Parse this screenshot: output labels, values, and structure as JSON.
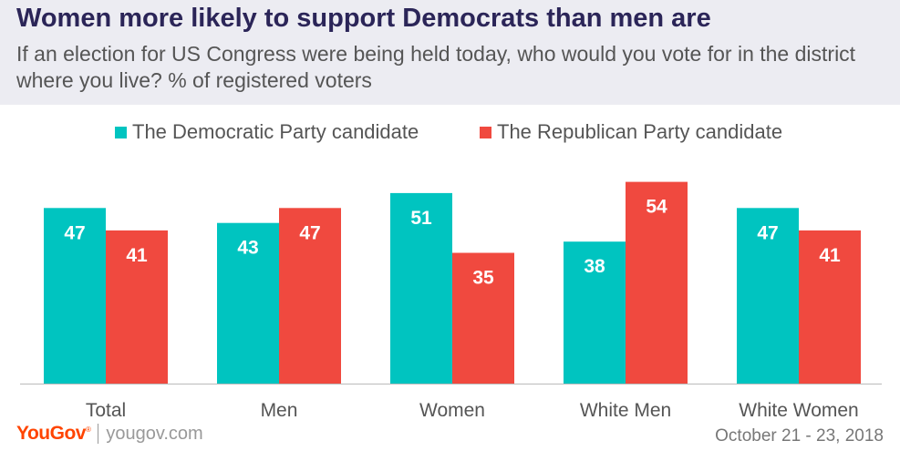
{
  "header": {
    "title": "Women more likely to support Democrats than men are",
    "subtitle": "If an election for US Congress were being held today, who would you vote for in the district where you live? % of registered voters"
  },
  "colors": {
    "dem": "#00c4c0",
    "rep": "#f0493f",
    "axis": "#bbbbbb"
  },
  "chart_data": {
    "type": "bar",
    "title": "Women more likely to support Democrats than men are",
    "categories": [
      "Total",
      "Men",
      "Women",
      "White Men",
      "White Women"
    ],
    "series": [
      {
        "name": "The Democratic Party candidate",
        "values": [
          47,
          43,
          51,
          38,
          47
        ]
      },
      {
        "name": "The Republican Party candidate",
        "values": [
          41,
          47,
          35,
          54,
          41
        ]
      }
    ],
    "xlabel": "",
    "ylabel": "",
    "ylim": [
      0,
      100
    ],
    "grid": false,
    "legend": "top-center"
  },
  "footer": {
    "logo": "YouGov",
    "site": "yougov.com",
    "date": "October 21 - 23, 2018"
  }
}
